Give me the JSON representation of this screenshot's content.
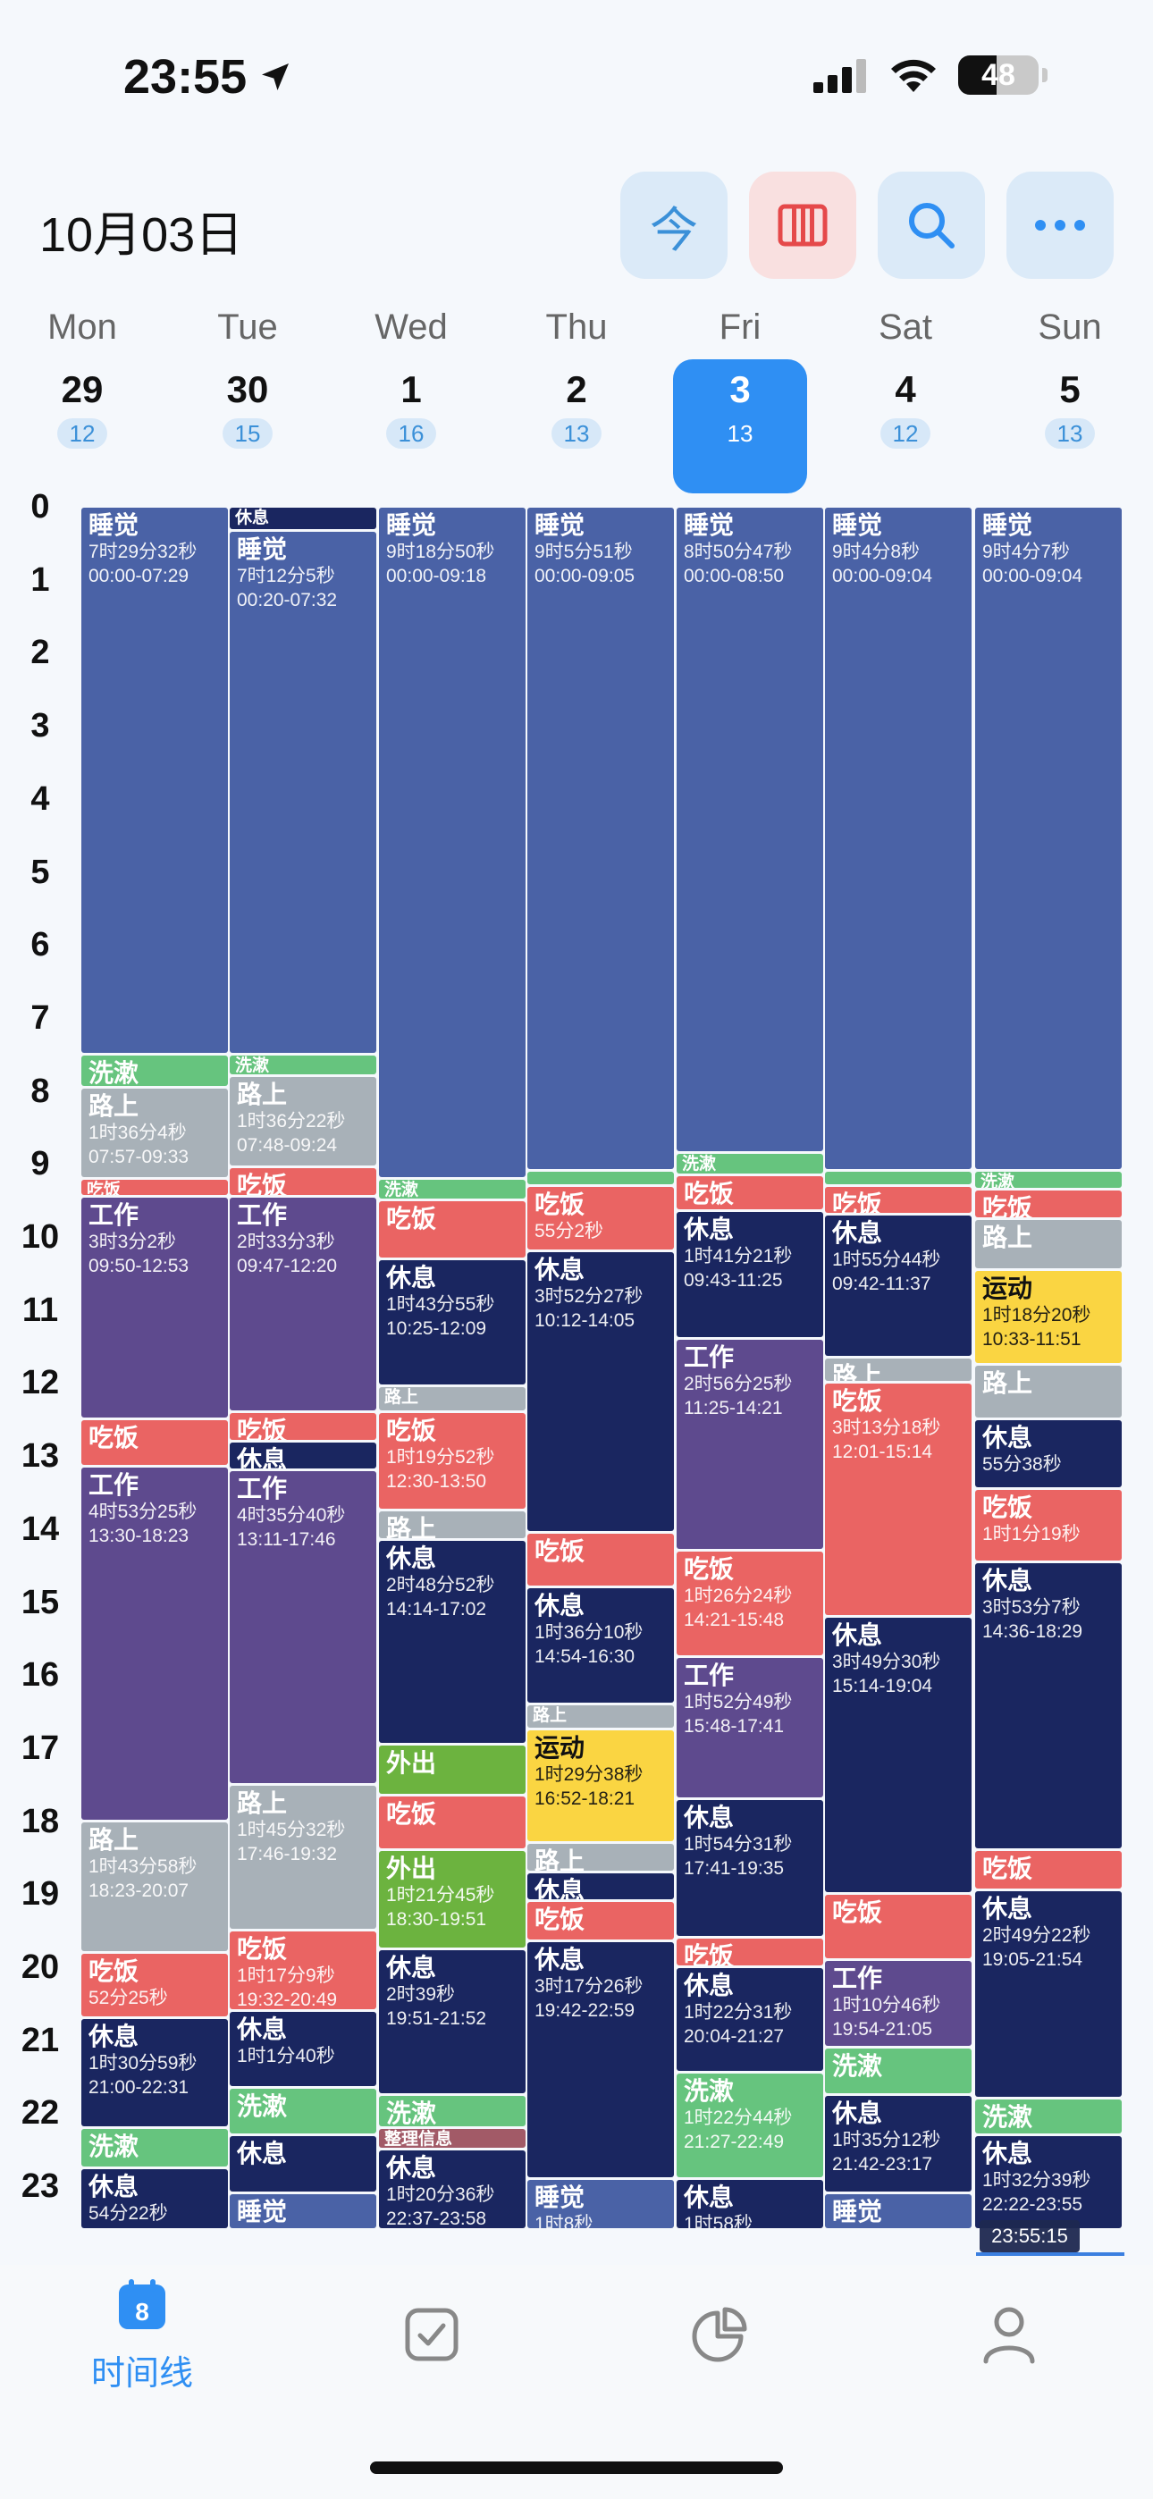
{
  "status": {
    "time": "23:55",
    "battery": "48"
  },
  "header": {
    "date": "10月03日",
    "today_label": "今"
  },
  "days": [
    {
      "name": "Mon",
      "num": "29",
      "count": "12"
    },
    {
      "name": "Tue",
      "num": "30",
      "count": "15"
    },
    {
      "name": "Wed",
      "num": "1",
      "count": "16"
    },
    {
      "name": "Thu",
      "num": "2",
      "count": "13"
    },
    {
      "name": "Fri",
      "num": "3",
      "count": "13",
      "today": true
    },
    {
      "name": "Sat",
      "num": "4",
      "count": "12"
    },
    {
      "name": "Sun",
      "num": "5",
      "count": "13"
    }
  ],
  "hours": [
    "0",
    "1",
    "2",
    "3",
    "4",
    "5",
    "6",
    "7",
    "8",
    "9",
    "10",
    "11",
    "12",
    "13",
    "14",
    "15",
    "16",
    "17",
    "18",
    "19",
    "20",
    "21",
    "22",
    "23"
  ],
  "colors": {
    "sleep": "#4a62a6",
    "wash": "#66c47e",
    "commute": "#a8b1b8",
    "meal": "#ea6463",
    "work": "#5e4a8e",
    "rest": "#1a2660",
    "sport": "#fad542",
    "out": "#6cb33f",
    "organize": "#a25a67"
  },
  "columns": [
    {
      "events": [
        {
          "s": 0,
          "e": 7.5,
          "c": "sleep",
          "title": "睡觉",
          "dur": "7时29分32秒",
          "range": "00:00-07:29"
        },
        {
          "s": 7.5,
          "e": 7.95,
          "c": "wash",
          "title": "洗漱"
        },
        {
          "s": 7.95,
          "e": 9.2,
          "c": "commute",
          "title": "路上",
          "dur": "1时36分4秒",
          "range": "07:57-09:33"
        },
        {
          "s": 9.2,
          "e": 9.45,
          "c": "meal",
          "title": "吃饭",
          "small": true
        },
        {
          "s": 9.45,
          "e": 12.5,
          "c": "work",
          "title": "工作",
          "dur": "3时3分2秒",
          "range": "09:50-12:53"
        },
        {
          "s": 12.5,
          "e": 13.15,
          "c": "meal",
          "title": "吃饭"
        },
        {
          "s": 13.15,
          "e": 18.0,
          "c": "work",
          "title": "工作",
          "dur": "4时53分25秒",
          "range": "13:30-18:23"
        },
        {
          "s": 18.0,
          "e": 19.8,
          "c": "commute",
          "title": "路上",
          "dur": "1时43分58秒",
          "range": "18:23-20:07"
        },
        {
          "s": 19.8,
          "e": 20.7,
          "c": "meal",
          "title": "吃饭",
          "dur": "52分25秒"
        },
        {
          "s": 20.7,
          "e": 22.2,
          "c": "rest",
          "title": "休息",
          "dur": "1时30分59秒",
          "range": "21:00-22:31"
        },
        {
          "s": 22.2,
          "e": 22.75,
          "c": "wash",
          "title": "洗漱"
        },
        {
          "s": 22.75,
          "e": 23.6,
          "c": "rest",
          "title": "休息",
          "dur": "54分22秒"
        }
      ]
    },
    {
      "events": [
        {
          "s": 0,
          "e": 0.33,
          "c": "rest",
          "title": "休息",
          "small": true
        },
        {
          "s": 0.33,
          "e": 7.5,
          "c": "sleep",
          "title": "睡觉",
          "dur": "7时12分5秒",
          "range": "00:20-07:32"
        },
        {
          "s": 7.5,
          "e": 7.8,
          "c": "wash",
          "title": "洗漱",
          "small": true
        },
        {
          "s": 7.8,
          "e": 9.05,
          "c": "commute",
          "title": "路上",
          "dur": "1时36分22秒",
          "range": "07:48-09:24"
        },
        {
          "s": 9.05,
          "e": 9.45,
          "c": "meal",
          "title": "吃饭"
        },
        {
          "s": 9.45,
          "e": 12.4,
          "c": "work",
          "title": "工作",
          "dur": "2时33分3秒",
          "range": "09:47-12:20"
        },
        {
          "s": 12.4,
          "e": 12.8,
          "c": "meal",
          "title": "吃饭"
        },
        {
          "s": 12.8,
          "e": 13.2,
          "c": "rest",
          "title": "休息"
        },
        {
          "s": 13.2,
          "e": 17.5,
          "c": "work",
          "title": "工作",
          "dur": "4时35分40秒",
          "range": "13:11-17:46"
        },
        {
          "s": 17.5,
          "e": 19.5,
          "c": "commute",
          "title": "路上",
          "dur": "1时45分32秒",
          "range": "17:46-19:32"
        },
        {
          "s": 19.5,
          "e": 20.6,
          "c": "meal",
          "title": "吃饭",
          "dur": "1时17分9秒",
          "range": "19:32-20:49"
        },
        {
          "s": 20.6,
          "e": 21.65,
          "c": "rest",
          "title": "休息",
          "dur": "1时1分40秒"
        },
        {
          "s": 21.65,
          "e": 22.3,
          "c": "wash",
          "title": "洗漱"
        },
        {
          "s": 22.3,
          "e": 23.1,
          "c": "rest",
          "title": "休息"
        },
        {
          "s": 23.1,
          "e": 23.6,
          "c": "sleep",
          "title": "睡觉"
        }
      ]
    },
    {
      "events": [
        {
          "s": 0,
          "e": 9.2,
          "c": "sleep",
          "title": "睡觉",
          "dur": "9时18分50秒",
          "range": "00:00-09:18"
        },
        {
          "s": 9.2,
          "e": 9.5,
          "c": "wash",
          "title": "洗漱",
          "small": true
        },
        {
          "s": 9.5,
          "e": 10.3,
          "c": "meal",
          "title": "吃饭"
        },
        {
          "s": 10.3,
          "e": 12.05,
          "c": "rest",
          "title": "休息",
          "dur": "1时43分55秒",
          "range": "10:25-12:09"
        },
        {
          "s": 12.05,
          "e": 12.4,
          "c": "commute",
          "title": "路上",
          "small": true
        },
        {
          "s": 12.4,
          "e": 13.75,
          "c": "meal",
          "title": "吃饭",
          "dur": "1时19分52秒",
          "range": "12:30-13:50"
        },
        {
          "s": 13.75,
          "e": 14.15,
          "c": "commute",
          "title": "路上"
        },
        {
          "s": 14.15,
          "e": 16.95,
          "c": "rest",
          "title": "休息",
          "dur": "2时48分52秒",
          "range": "14:14-17:02"
        },
        {
          "s": 16.95,
          "e": 17.65,
          "c": "out",
          "title": "外出"
        },
        {
          "s": 17.65,
          "e": 18.4,
          "c": "meal",
          "title": "吃饭"
        },
        {
          "s": 18.4,
          "e": 19.75,
          "c": "out",
          "title": "外出",
          "dur": "1时21分45秒",
          "range": "18:30-19:51"
        },
        {
          "s": 19.75,
          "e": 21.75,
          "c": "rest",
          "title": "休息",
          "dur": "2时39秒",
          "range": "19:51-21:52"
        },
        {
          "s": 21.75,
          "e": 22.2,
          "c": "wash",
          "title": "洗漱"
        },
        {
          "s": 22.2,
          "e": 22.5,
          "c": "organize",
          "title": "整理信息",
          "small": true
        },
        {
          "s": 22.5,
          "e": 23.6,
          "c": "rest",
          "title": "休息",
          "dur": "1时20分36秒",
          "range": "22:37-23:58"
        }
      ]
    },
    {
      "events": [
        {
          "s": 0,
          "e": 9.1,
          "c": "sleep",
          "title": "睡觉",
          "dur": "9时5分51秒",
          "range": "00:00-09:05"
        },
        {
          "s": 9.1,
          "e": 9.3,
          "c": "wash",
          "title": ""
        },
        {
          "s": 9.3,
          "e": 10.2,
          "c": "meal",
          "title": "吃饭",
          "dur": "55分2秒"
        },
        {
          "s": 10.2,
          "e": 14.05,
          "c": "rest",
          "title": "休息",
          "dur": "3时52分27秒",
          "range": "10:12-14:05"
        },
        {
          "s": 14.05,
          "e": 14.8,
          "c": "meal",
          "title": "吃饭"
        },
        {
          "s": 14.8,
          "e": 16.4,
          "c": "rest",
          "title": "休息",
          "dur": "1时36分10秒",
          "range": "14:54-16:30"
        },
        {
          "s": 16.4,
          "e": 16.75,
          "c": "commute",
          "title": "路上",
          "small": true
        },
        {
          "s": 16.75,
          "e": 18.3,
          "c": "sport",
          "title": "运动",
          "dur": "1时29分38秒",
          "range": "16:52-18:21",
          "dark": true
        },
        {
          "s": 18.3,
          "e": 18.7,
          "c": "commute",
          "title": "路上"
        },
        {
          "s": 18.7,
          "e": 19.1,
          "c": "rest",
          "title": "休息"
        },
        {
          "s": 19.1,
          "e": 19.65,
          "c": "meal",
          "title": "吃饭"
        },
        {
          "s": 19.65,
          "e": 22.9,
          "c": "rest",
          "title": "休息",
          "dur": "3时17分26秒",
          "range": "19:42-22:59"
        },
        {
          "s": 22.9,
          "e": 23.6,
          "c": "sleep",
          "title": "睡觉",
          "dur": "1时8秒"
        }
      ]
    },
    {
      "events": [
        {
          "s": 0,
          "e": 8.85,
          "c": "sleep",
          "title": "睡觉",
          "dur": "8时50分47秒",
          "range": "00:00-08:50"
        },
        {
          "s": 8.85,
          "e": 9.15,
          "c": "wash",
          "title": "洗漱",
          "small": true
        },
        {
          "s": 9.15,
          "e": 9.65,
          "c": "meal",
          "title": "吃饭"
        },
        {
          "s": 9.65,
          "e": 11.4,
          "c": "rest",
          "title": "休息",
          "dur": "1时41分21秒",
          "range": "09:43-11:25"
        },
        {
          "s": 11.4,
          "e": 14.3,
          "c": "work",
          "title": "工作",
          "dur": "2时56分25秒",
          "range": "11:25-14:21"
        },
        {
          "s": 14.3,
          "e": 15.75,
          "c": "meal",
          "title": "吃饭",
          "dur": "1时26分24秒",
          "range": "14:21-15:48"
        },
        {
          "s": 15.75,
          "e": 17.7,
          "c": "work",
          "title": "工作",
          "dur": "1时52分49秒",
          "range": "15:48-17:41"
        },
        {
          "s": 17.7,
          "e": 19.6,
          "c": "rest",
          "title": "休息",
          "dur": "1时54分31秒",
          "range": "17:41-19:35"
        },
        {
          "s": 19.6,
          "e": 20.0,
          "c": "meal",
          "title": "吃饭"
        },
        {
          "s": 20.0,
          "e": 21.45,
          "c": "rest",
          "title": "休息",
          "dur": "1时22分31秒",
          "range": "20:04-21:27"
        },
        {
          "s": 21.45,
          "e": 22.9,
          "c": "wash",
          "title": "洗漱",
          "dur": "1时22分44秒",
          "range": "21:27-22:49"
        },
        {
          "s": 22.9,
          "e": 23.6,
          "c": "rest",
          "title": "休息",
          "dur": "1时58秒"
        }
      ]
    },
    {
      "events": [
        {
          "s": 0,
          "e": 9.1,
          "c": "sleep",
          "title": "睡觉",
          "dur": "9时4分8秒",
          "range": "00:00-09:04"
        },
        {
          "s": 9.1,
          "e": 9.3,
          "c": "wash",
          "title": ""
        },
        {
          "s": 9.3,
          "e": 9.7,
          "c": "meal",
          "title": "吃饭"
        },
        {
          "s": 9.7,
          "e": 11.65,
          "c": "rest",
          "title": "休息",
          "dur": "1时55分44秒",
          "range": "09:42-11:37"
        },
        {
          "s": 11.65,
          "e": 12.0,
          "c": "commute",
          "title": "路上"
        },
        {
          "s": 12.0,
          "e": 15.2,
          "c": "meal",
          "title": "吃饭",
          "dur": "3时13分18秒",
          "range": "12:01-15:14"
        },
        {
          "s": 15.2,
          "e": 19.0,
          "c": "rest",
          "title": "休息",
          "dur": "3时49分30秒",
          "range": "15:14-19:04"
        },
        {
          "s": 19.0,
          "e": 19.9,
          "c": "meal",
          "title": "吃饭"
        },
        {
          "s": 19.9,
          "e": 21.1,
          "c": "work",
          "title": "工作",
          "dur": "1时10分46秒",
          "range": "19:54-21:05"
        },
        {
          "s": 21.1,
          "e": 21.75,
          "c": "wash",
          "title": "洗漱"
        },
        {
          "s": 21.75,
          "e": 23.1,
          "c": "rest",
          "title": "休息",
          "dur": "1时35分12秒",
          "range": "21:42-23:17"
        },
        {
          "s": 23.1,
          "e": 23.6,
          "c": "sleep",
          "title": "睡觉"
        }
      ]
    },
    {
      "events": [
        {
          "s": 0,
          "e": 9.1,
          "c": "sleep",
          "title": "睡觉",
          "dur": "9时4分7秒",
          "range": "00:00-09:04"
        },
        {
          "s": 9.1,
          "e": 9.35,
          "c": "wash",
          "title": "洗漱",
          "small": true
        },
        {
          "s": 9.35,
          "e": 9.75,
          "c": "meal",
          "title": "吃饭"
        },
        {
          "s": 9.75,
          "e": 10.45,
          "c": "commute",
          "title": "路上"
        },
        {
          "s": 10.45,
          "e": 11.75,
          "c": "sport",
          "title": "运动",
          "dur": "1时18分20秒",
          "range": "10:33-11:51",
          "dark": true
        },
        {
          "s": 11.75,
          "e": 12.5,
          "c": "commute",
          "title": "路上"
        },
        {
          "s": 12.5,
          "e": 13.45,
          "c": "rest",
          "title": "休息",
          "dur": "55分38秒"
        },
        {
          "s": 13.45,
          "e": 14.45,
          "c": "meal",
          "title": "吃饭",
          "dur": "1时1分19秒"
        },
        {
          "s": 14.45,
          "e": 18.4,
          "c": "rest",
          "title": "休息",
          "dur": "3时53分7秒",
          "range": "14:36-18:29"
        },
        {
          "s": 18.4,
          "e": 18.95,
          "c": "meal",
          "title": "吃饭"
        },
        {
          "s": 18.95,
          "e": 21.8,
          "c": "rest",
          "title": "休息",
          "dur": "2时49分22秒",
          "range": "19:05-21:54"
        },
        {
          "s": 21.8,
          "e": 22.3,
          "c": "wash",
          "title": "洗漱"
        },
        {
          "s": 22.3,
          "e": 23.6,
          "c": "rest",
          "title": "休息",
          "dur": "1时32分39秒",
          "range": "22:22-23:55"
        }
      ]
    }
  ],
  "now": "23:55:15",
  "tabs": [
    {
      "label": "时间线",
      "badge": "8"
    },
    {
      "label": ""
    },
    {
      "label": ""
    },
    {
      "label": ""
    }
  ]
}
